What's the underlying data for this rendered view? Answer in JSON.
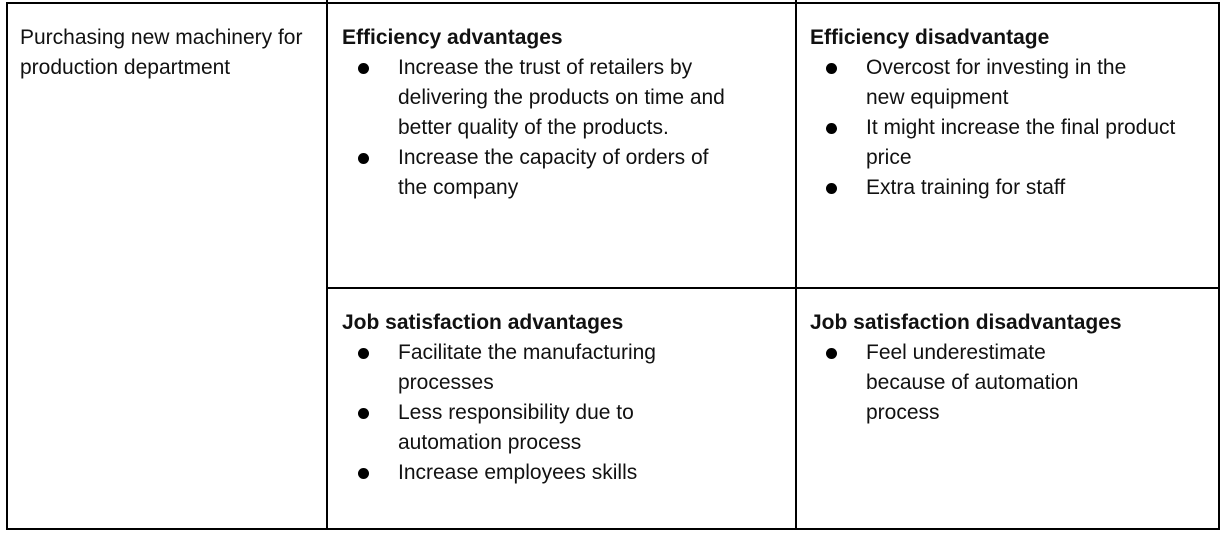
{
  "row_label": "Purchasing new machinery for production department",
  "efficiency_advantages": {
    "heading": "Efficiency advantages",
    "items": [
      "Increase the trust of retailers by delivering the products on time and better quality of the products.",
      "Increase the capacity of orders of the company"
    ]
  },
  "efficiency_disadvantage": {
    "heading": "Efficiency disadvantage",
    "items": [
      "Overcost for investing in the new equipment",
      "It might increase the final product price",
      "Extra training for staff"
    ]
  },
  "job_satisfaction_advantages": {
    "heading": "Job satisfaction advantages",
    "items": [
      "Facilitate the manufacturing processes",
      "Less responsibility due to automation process",
      "Increase employees skills"
    ]
  },
  "job_satisfaction_disadvantages": {
    "heading": "Job satisfaction disadvantages",
    "items": [
      "Feel underestimate because of automation process"
    ]
  }
}
